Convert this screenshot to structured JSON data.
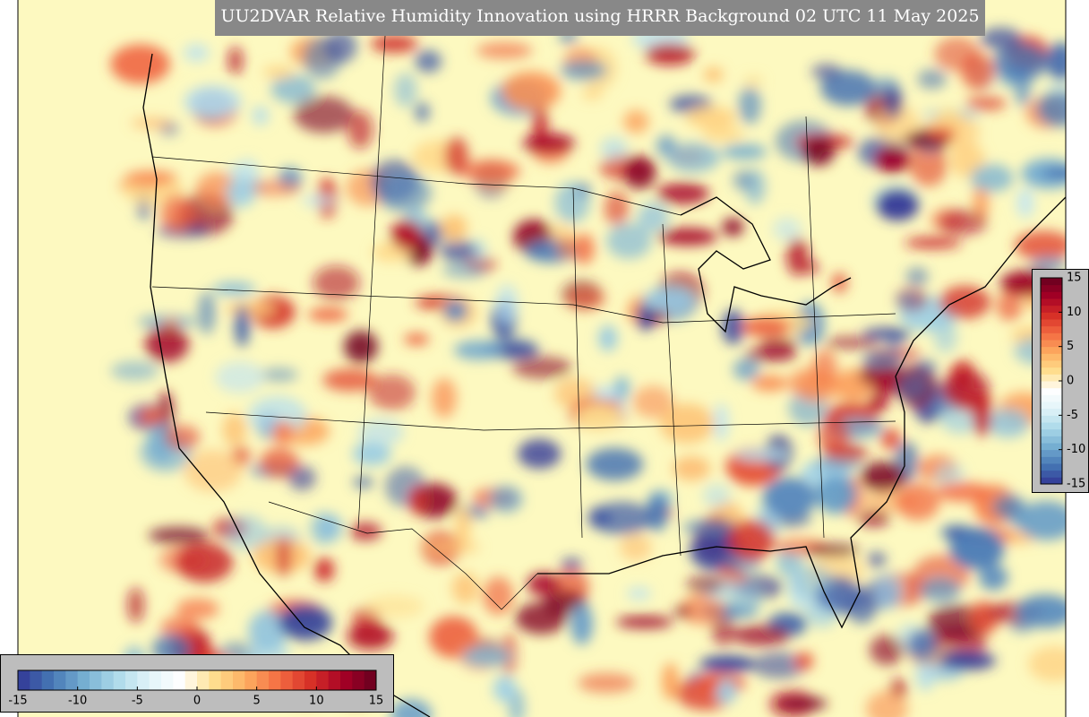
{
  "title": "UU2DVAR Relative Humidity Innovation using HRRR Background 02 UTC 11 May 2025",
  "colorbar_horizontal": {
    "lim": [
      -15,
      15
    ],
    "ticks": [
      -15,
      -10,
      -5,
      0,
      5,
      10,
      15
    ]
  },
  "colorbar_vertical": {
    "lim": [
      -15,
      15
    ],
    "ticks": [
      -15,
      -10,
      -5,
      0,
      5,
      10,
      15
    ]
  },
  "colormap": [
    "#313695",
    "#4575b4",
    "#74add1",
    "#abd9e9",
    "#e0f3f8",
    "#ffffff",
    "#fee090",
    "#fdae61",
    "#f46d43",
    "#d73027",
    "#a50026",
    "#67001f"
  ]
}
